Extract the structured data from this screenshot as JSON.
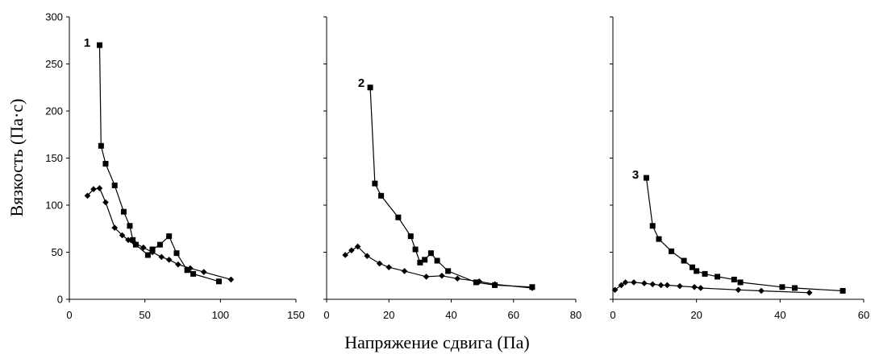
{
  "chart_data": [
    {
      "type": "line",
      "panel_label": "1",
      "xlim": [
        0,
        150
      ],
      "ylim": [
        0,
        300
      ],
      "xticks": [
        0,
        50,
        100,
        150
      ],
      "yticks": [
        0,
        50,
        100,
        150,
        200,
        250,
        300
      ],
      "series": [
        {
          "marker": "square",
          "x": [
            20,
            21,
            24,
            30,
            36,
            40,
            42,
            44,
            52,
            55,
            60,
            66,
            71,
            78,
            82,
            99
          ],
          "y": [
            270,
            163,
            144,
            121,
            93,
            78,
            63,
            58,
            47,
            53,
            58,
            67,
            49,
            31,
            27,
            19
          ]
        },
        {
          "marker": "diamond",
          "x": [
            12,
            16,
            20,
            24,
            30,
            35,
            39,
            43,
            49,
            55,
            61,
            66,
            72,
            80,
            89,
            107
          ],
          "y": [
            110,
            117,
            118,
            103,
            76,
            68,
            63,
            60,
            55,
            50,
            45,
            42,
            37,
            33,
            29,
            21
          ]
        }
      ]
    },
    {
      "type": "line",
      "panel_label": "2",
      "xlim": [
        0,
        80
      ],
      "ylim": [
        0,
        300
      ],
      "xticks": [
        0,
        20,
        40,
        60,
        80
      ],
      "series": [
        {
          "marker": "square",
          "x": [
            14,
            15.5,
            17.5,
            23,
            27,
            28.5,
            30,
            31.5,
            33.5,
            35.5,
            39,
            48,
            54,
            66
          ],
          "y": [
            225,
            123,
            110,
            87,
            67,
            53,
            39,
            42,
            49,
            41,
            30,
            18,
            15,
            13
          ]
        },
        {
          "marker": "diamond",
          "x": [
            6,
            8,
            10,
            13,
            17,
            20,
            25,
            32,
            37,
            42,
            49,
            54,
            66
          ],
          "y": [
            47,
            52,
            56,
            46,
            38,
            34,
            30,
            24,
            25,
            22,
            19,
            16,
            12
          ]
        }
      ]
    },
    {
      "type": "line",
      "panel_label": "3",
      "xlim": [
        0,
        60
      ],
      "ylim": [
        0,
        300
      ],
      "xticks": [
        0,
        20,
        40,
        60
      ],
      "series": [
        {
          "marker": "square",
          "x": [
            8,
            9.5,
            11,
            14,
            17,
            19,
            20,
            22,
            25,
            29,
            30.5,
            40.5,
            43.5,
            55
          ],
          "y": [
            129,
            78,
            64,
            51,
            41,
            34,
            30,
            27,
            24,
            21,
            18,
            13,
            12,
            9
          ]
        },
        {
          "marker": "diamond",
          "x": [
            0.5,
            2,
            3,
            5,
            7.5,
            9.5,
            11.5,
            13,
            16,
            19.5,
            21,
            30,
            35.5,
            47
          ],
          "y": [
            10,
            15,
            18,
            18,
            17,
            16,
            15,
            15,
            14,
            13,
            12,
            10,
            9,
            7
          ]
        }
      ]
    }
  ],
  "ylabel": "Вязкость (Па·с)",
  "xlabel": "Напряжение сдвига (Па)"
}
